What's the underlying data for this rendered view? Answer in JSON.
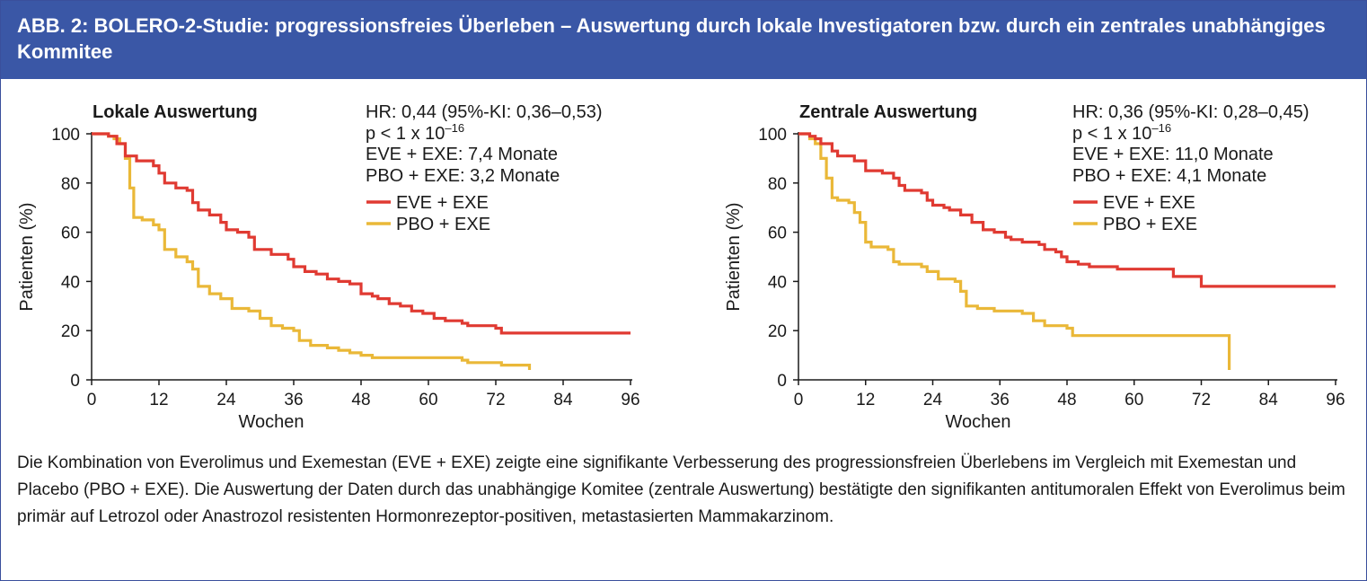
{
  "figure": {
    "title": "ABB. 2: BOLERO-2-Studie: progressionsfreies Überleben – Auswertung durch lokale Investigatoren bzw. durch ein zentrales unabhängiges Kommitee",
    "caption": "Die Kombination von Everolimus und Exemestan (EVE + EXE) zeigte eine signifikante Verbesserung des progressionsfreien Überlebens im Vergleich mit Exemestan und Placebo (PBO + EXE). Die Auswertung der Daten durch das unabhängige Komitee (zentrale Auswertung) bestätigte den signifikanten antitumoralen Effekt von Everolimus beim primär auf Letrozol oder Anastrozol resistenten Hormonrezeptor-positiven, metastasierten Mammakarzinom."
  },
  "chart_data": [
    {
      "type": "line",
      "title": "Lokale Auswertung",
      "xlabel": "Wochen",
      "ylabel": "Patienten (%)",
      "xlim": [
        0,
        96
      ],
      "ylim": [
        0,
        100
      ],
      "x_ticks": [
        0,
        12,
        24,
        36,
        48,
        60,
        72,
        84,
        96
      ],
      "y_ticks": [
        0,
        20,
        40,
        60,
        80,
        100
      ],
      "grid": false,
      "annotation": {
        "hr": "HR: 0,44 (95%-KI: 0,36–0,53)",
        "p_prefix": "p < 1 x 10",
        "p_exponent": "–16",
        "median_eve": "EVE + EXE: 7,4 Monate",
        "median_pbo": "PBO + EXE: 3,2 Monate"
      },
      "series": [
        {
          "name": "EVE + EXE",
          "color": "#e03a32",
          "points": [
            [
              0,
              100
            ],
            [
              3,
              99
            ],
            [
              4.5,
              96
            ],
            [
              6,
              91
            ],
            [
              8,
              89
            ],
            [
              11,
              87
            ],
            [
              12,
              84
            ],
            [
              13,
              80
            ],
            [
              15,
              78
            ],
            [
              17,
              77
            ],
            [
              18,
              72
            ],
            [
              19,
              69
            ],
            [
              21,
              67
            ],
            [
              23,
              64
            ],
            [
              24,
              61
            ],
            [
              26,
              60
            ],
            [
              28,
              58
            ],
            [
              29,
              53
            ],
            [
              32,
              51
            ],
            [
              35,
              49
            ],
            [
              36,
              46
            ],
            [
              38,
              44
            ],
            [
              40,
              43
            ],
            [
              42,
              41
            ],
            [
              44,
              40
            ],
            [
              46,
              39
            ],
            [
              48,
              35
            ],
            [
              50,
              34
            ],
            [
              51,
              33
            ],
            [
              53,
              31
            ],
            [
              55,
              30
            ],
            [
              57,
              28
            ],
            [
              59,
              27
            ],
            [
              61,
              25
            ],
            [
              63,
              24
            ],
            [
              66,
              23
            ],
            [
              67,
              22
            ],
            [
              69,
              22
            ],
            [
              70,
              22
            ],
            [
              72,
              21
            ],
            [
              73,
              19
            ],
            [
              80,
              19
            ],
            [
              96,
              19
            ]
          ]
        },
        {
          "name": "PBO + EXE",
          "color": "#eab838",
          "points": [
            [
              0,
              100
            ],
            [
              3,
              99
            ],
            [
              4,
              98
            ],
            [
              5,
              96
            ],
            [
              6,
              90
            ],
            [
              6.8,
              78
            ],
            [
              7.5,
              66
            ],
            [
              9,
              65
            ],
            [
              11,
              63
            ],
            [
              12,
              61
            ],
            [
              13,
              53
            ],
            [
              15,
              50
            ],
            [
              17,
              48
            ],
            [
              18,
              45
            ],
            [
              19,
              38
            ],
            [
              21,
              35
            ],
            [
              23,
              33
            ],
            [
              25,
              29
            ],
            [
              28,
              28
            ],
            [
              30,
              25
            ],
            [
              32,
              22
            ],
            [
              34,
              21
            ],
            [
              36,
              20
            ],
            [
              37,
              16
            ],
            [
              39,
              14
            ],
            [
              42,
              13
            ],
            [
              44,
              12
            ],
            [
              46,
              11
            ],
            [
              48,
              10
            ],
            [
              50,
              9
            ],
            [
              55,
              9
            ],
            [
              60,
              9
            ],
            [
              66,
              8
            ],
            [
              67,
              7
            ],
            [
              72,
              7
            ],
            [
              73,
              6
            ],
            [
              76,
              6
            ],
            [
              78,
              6
            ],
            [
              78,
              4
            ]
          ]
        }
      ]
    },
    {
      "type": "line",
      "title": "Zentrale Auswertung",
      "xlabel": "Wochen",
      "ylabel": "Patienten (%)",
      "xlim": [
        0,
        96
      ],
      "ylim": [
        0,
        100
      ],
      "x_ticks": [
        0,
        12,
        24,
        36,
        48,
        60,
        72,
        84,
        96
      ],
      "y_ticks": [
        0,
        20,
        40,
        60,
        80,
        100
      ],
      "grid": false,
      "annotation": {
        "hr": "HR: 0,36 (95%-KI: 0,28–0,45)",
        "p_prefix": "p < 1 x 10",
        "p_exponent": "–16",
        "median_eve": "EVE + EXE: 11,0 Monate",
        "median_pbo": "PBO + EXE: 4,1 Monate"
      },
      "series": [
        {
          "name": "EVE + EXE",
          "color": "#e03a32",
          "points": [
            [
              0,
              100
            ],
            [
              2,
              99
            ],
            [
              3,
              98
            ],
            [
              4,
              96
            ],
            [
              6,
              93
            ],
            [
              7,
              91
            ],
            [
              10,
              89
            ],
            [
              12,
              85
            ],
            [
              15,
              84
            ],
            [
              17,
              82
            ],
            [
              18,
              79
            ],
            [
              19,
              77
            ],
            [
              22,
              76
            ],
            [
              23,
              73
            ],
            [
              24,
              71
            ],
            [
              26,
              70
            ],
            [
              27,
              69
            ],
            [
              29,
              67
            ],
            [
              31,
              64
            ],
            [
              33,
              61
            ],
            [
              35,
              60
            ],
            [
              37,
              58
            ],
            [
              38,
              57
            ],
            [
              40,
              56
            ],
            [
              43,
              55
            ],
            [
              44,
              53
            ],
            [
              46,
              52
            ],
            [
              47,
              50
            ],
            [
              48,
              48
            ],
            [
              50,
              47
            ],
            [
              52,
              46
            ],
            [
              54,
              46
            ],
            [
              57,
              45
            ],
            [
              60,
              45
            ],
            [
              66,
              45
            ],
            [
              67,
              42
            ],
            [
              71,
              42
            ],
            [
              72,
              38
            ],
            [
              80,
              38
            ],
            [
              96,
              38
            ]
          ]
        },
        {
          "name": "PBO + EXE",
          "color": "#eab838",
          "points": [
            [
              0,
              100
            ],
            [
              2,
              98
            ],
            [
              3,
              96
            ],
            [
              4,
              90
            ],
            [
              5,
              82
            ],
            [
              6,
              74
            ],
            [
              7,
              73
            ],
            [
              9,
              72
            ],
            [
              10,
              68
            ],
            [
              11,
              64
            ],
            [
              12,
              56
            ],
            [
              13,
              54
            ],
            [
              16,
              53
            ],
            [
              17,
              48
            ],
            [
              18,
              47
            ],
            [
              22,
              46
            ],
            [
              23,
              44
            ],
            [
              25,
              41
            ],
            [
              28,
              40
            ],
            [
              29,
              36
            ],
            [
              30,
              30
            ],
            [
              32,
              29
            ],
            [
              35,
              28
            ],
            [
              39,
              28
            ],
            [
              40,
              27
            ],
            [
              42,
              24
            ],
            [
              44,
              22
            ],
            [
              48,
              21
            ],
            [
              49,
              18
            ],
            [
              58,
              18
            ],
            [
              70,
              18
            ],
            [
              77,
              18
            ],
            [
              77,
              4
            ]
          ]
        }
      ]
    }
  ]
}
